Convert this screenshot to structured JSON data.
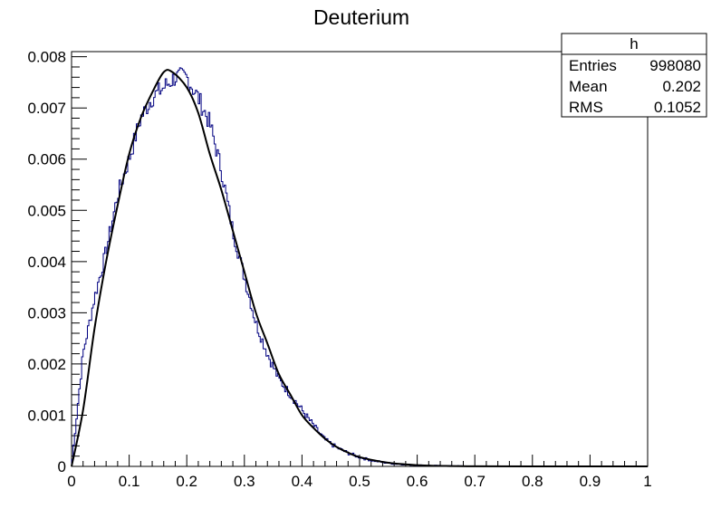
{
  "chart_data": {
    "type": "histogram",
    "title": "Deuterium",
    "xlabel": "",
    "ylabel": "",
    "xlim": [
      0,
      1
    ],
    "ylim": [
      0,
      0.0081
    ],
    "grid": false,
    "x_ticks": [
      "0",
      "0.1",
      "0.2",
      "0.3",
      "0.4",
      "0.5",
      "0.6",
      "0.7",
      "0.8",
      "0.9",
      "1"
    ],
    "y_ticks": [
      "0",
      "0.001",
      "0.002",
      "0.003",
      "0.004",
      "0.005",
      "0.006",
      "0.007",
      "0.008"
    ],
    "stats_box": {
      "name": "h",
      "rows": [
        {
          "label": "Entries",
          "value": "998080"
        },
        {
          "label": "Mean",
          "value": "0.202"
        },
        {
          "label": "RMS",
          "value": "0.1052"
        }
      ],
      "placement": "top-right"
    },
    "series": [
      {
        "style": "step histogram",
        "color": "#000080",
        "x": [
          0.0,
          0.02,
          0.04,
          0.06,
          0.08,
          0.1,
          0.12,
          0.14,
          0.16,
          0.18,
          0.2,
          0.22,
          0.24,
          0.26,
          0.28,
          0.3,
          0.32,
          0.34,
          0.36,
          0.38,
          0.4,
          0.42,
          0.44,
          0.46,
          0.48,
          0.5,
          0.52,
          0.54,
          0.56,
          0.58,
          0.6,
          0.65,
          0.7,
          0.8,
          0.9,
          1.0
        ],
        "values": [
          0.0,
          0.0022,
          0.0033,
          0.0042,
          0.0053,
          0.006,
          0.0068,
          0.0072,
          0.0074,
          0.0076,
          0.0076,
          0.0072,
          0.0067,
          0.0058,
          0.0046,
          0.0037,
          0.0028,
          0.0022,
          0.0017,
          0.0014,
          0.0011,
          0.0008,
          0.00052,
          0.00037,
          0.00026,
          0.00018,
          0.00012,
          8e-05,
          5e-05,
          3.5e-05,
          2.2e-05,
          1e-05,
          4e-06,
          1e-06,
          0.0,
          0.0
        ]
      },
      {
        "style": "fit curve",
        "color": "#000000",
        "x": [
          0.0,
          0.02,
          0.04,
          0.06,
          0.08,
          0.1,
          0.12,
          0.14,
          0.16,
          0.175,
          0.2,
          0.22,
          0.24,
          0.26,
          0.28,
          0.3,
          0.32,
          0.34,
          0.36,
          0.38,
          0.4,
          0.42,
          0.44,
          0.46,
          0.48,
          0.5,
          0.55,
          0.6,
          0.65,
          0.7,
          0.8,
          1.0
        ],
        "values": [
          0.0,
          0.0011,
          0.0027,
          0.004,
          0.0051,
          0.0061,
          0.0068,
          0.0073,
          0.0077,
          0.0077,
          0.0074,
          0.0069,
          0.0061,
          0.0054,
          0.0046,
          0.0038,
          0.003,
          0.0024,
          0.0018,
          0.0014,
          0.001,
          0.00075,
          0.00054,
          0.00038,
          0.00027,
          0.00018,
          7e-05,
          2.5e-05,
          8e-06,
          2e-06,
          0.0,
          0.0
        ]
      }
    ]
  }
}
